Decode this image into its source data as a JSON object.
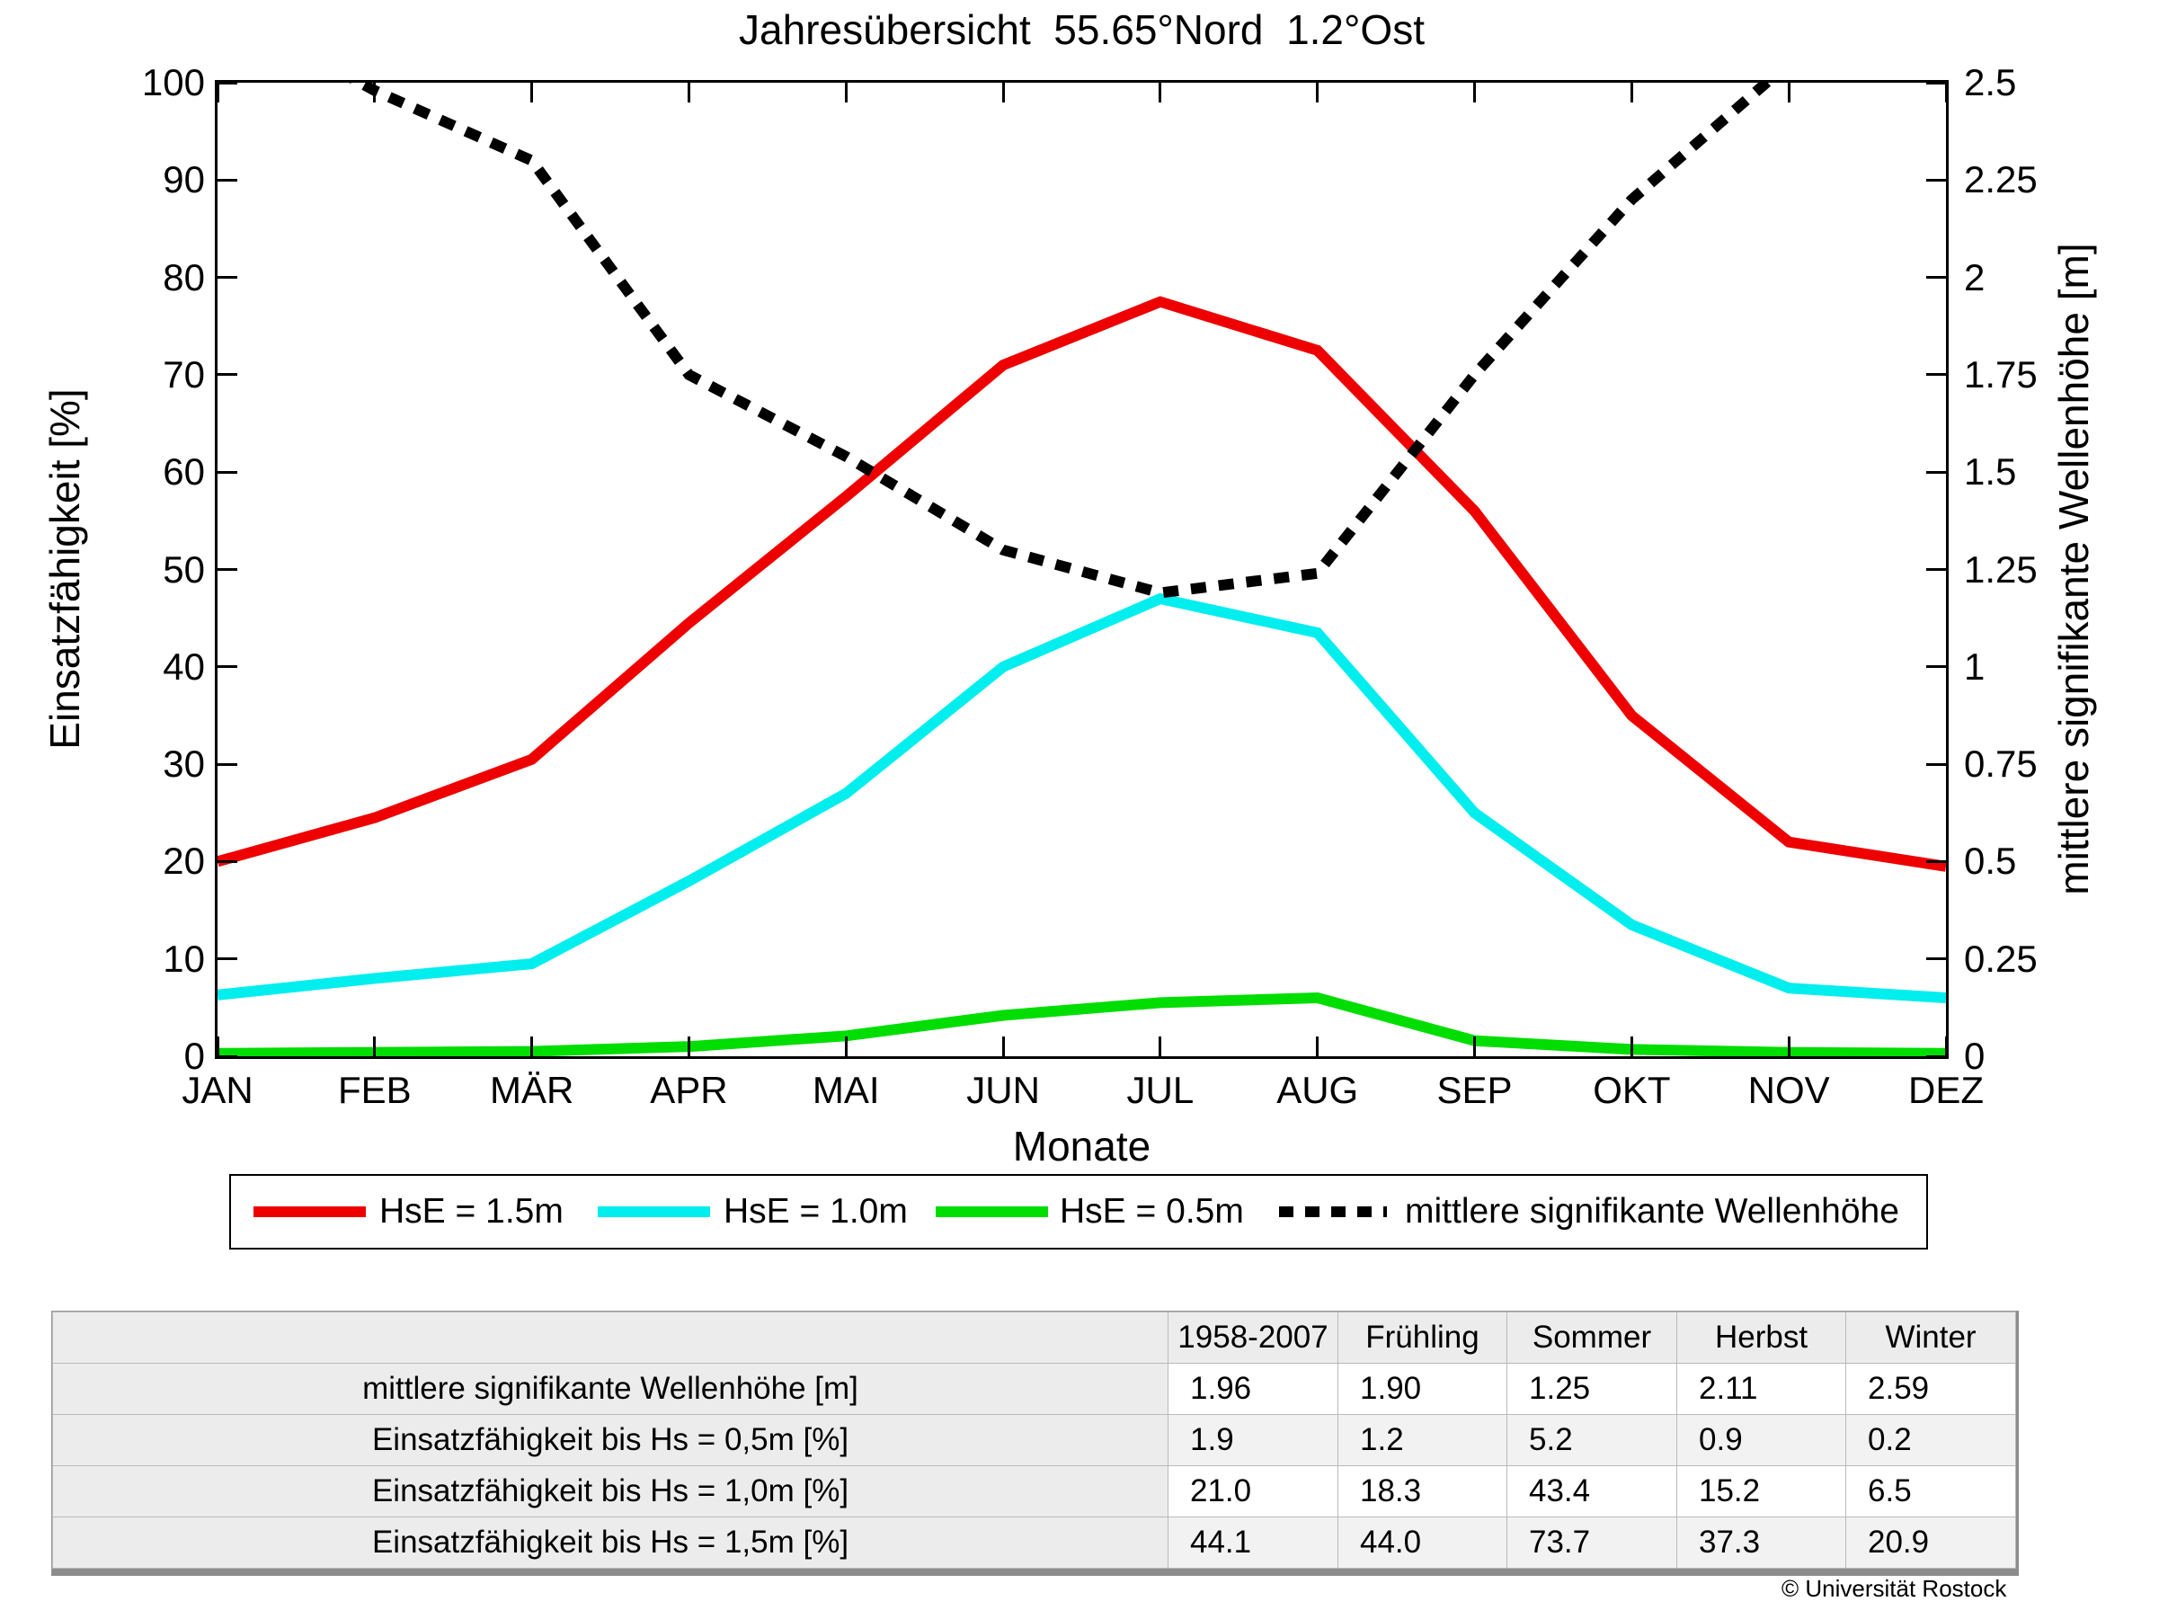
{
  "title": "Jahresübersicht  55.65°Nord  1.2°Ost",
  "axes": {
    "left_label": "Einsatzfähigkeit [%]",
    "right_label": "mittlere signifikante Wellenhöhe [m]",
    "x_label": "Monate",
    "left_ticks": [
      "0",
      "10",
      "20",
      "30",
      "40",
      "50",
      "60",
      "70",
      "80",
      "90",
      "100"
    ],
    "right_ticks": [
      "0",
      "0.25",
      "0.5",
      "0.75",
      "1",
      "1.25",
      "1.5",
      "1.75",
      "2",
      "2.25",
      "2.5"
    ],
    "left_range": [
      0,
      100
    ],
    "right_range": [
      0,
      2.5
    ]
  },
  "chart_data": {
    "type": "line",
    "title": "Jahresübersicht  55.65°Nord  1.2°Ost",
    "xlabel": "Monate",
    "ylabel_left": "Einsatzfähigkeit [%]",
    "ylabel_right": "mittlere signifikante Wellenhöhe [m]",
    "ylim_left": [
      0,
      100
    ],
    "ylim_right": [
      0,
      2.5
    ],
    "grid": false,
    "legend_position": "bottom",
    "categories": [
      "JAN",
      "FEB",
      "MÄR",
      "APR",
      "MAI",
      "JUN",
      "JUL",
      "AUG",
      "SEP",
      "OKT",
      "NOV",
      "DEZ"
    ],
    "series": [
      {
        "name": "HsE = 1.5m",
        "axis": "left",
        "color": "#ee0000",
        "style": "solid",
        "values": [
          20,
          24.5,
          30.5,
          44.5,
          57.5,
          71,
          77.5,
          72.5,
          56,
          35,
          22,
          19.5
        ]
      },
      {
        "name": "HsE = 1.0m",
        "axis": "left",
        "color": "#00eeee",
        "style": "solid",
        "values": [
          6.3,
          8,
          9.5,
          18,
          27,
          40,
          47,
          43.5,
          25,
          13.5,
          7,
          6
        ]
      },
      {
        "name": "HsE = 0.5m",
        "axis": "left",
        "color": "#00dd00",
        "style": "solid",
        "values": [
          0.3,
          0.4,
          0.5,
          1.0,
          2.1,
          4.2,
          5.5,
          6.0,
          1.6,
          0.7,
          0.4,
          0.3
        ]
      },
      {
        "name": "mittlere signifikante Wellenhöhe",
        "axis": "right",
        "color": "#000000",
        "style": "dotted",
        "values": [
          2.7,
          2.48,
          2.3,
          1.75,
          1.54,
          1.3,
          1.19,
          1.24,
          1.75,
          2.2,
          2.55,
          2.65
        ]
      }
    ]
  },
  "table": {
    "columns": [
      "1958-2007",
      "Frühling",
      "Sommer",
      "Herbst",
      "Winter"
    ],
    "rows": [
      {
        "label": "mittlere signifikante Wellenhöhe [m]",
        "values": [
          "1.96",
          "1.90",
          "1.25",
          "2.11",
          "2.59"
        ]
      },
      {
        "label": "Einsatzfähigkeit bis Hs = 0,5m [%]",
        "values": [
          "1.9",
          "1.2",
          "5.2",
          "0.9",
          "0.2"
        ]
      },
      {
        "label": "Einsatzfähigkeit bis Hs = 1,0m [%]",
        "values": [
          "21.0",
          "18.3",
          "43.4",
          "15.2",
          "6.5"
        ]
      },
      {
        "label": "Einsatzfähigkeit bis Hs = 1,5m [%]",
        "values": [
          "44.1",
          "44.0",
          "73.7",
          "37.3",
          "20.9"
        ]
      }
    ]
  },
  "footer": {
    "copyright": "© Universität Rostock"
  }
}
